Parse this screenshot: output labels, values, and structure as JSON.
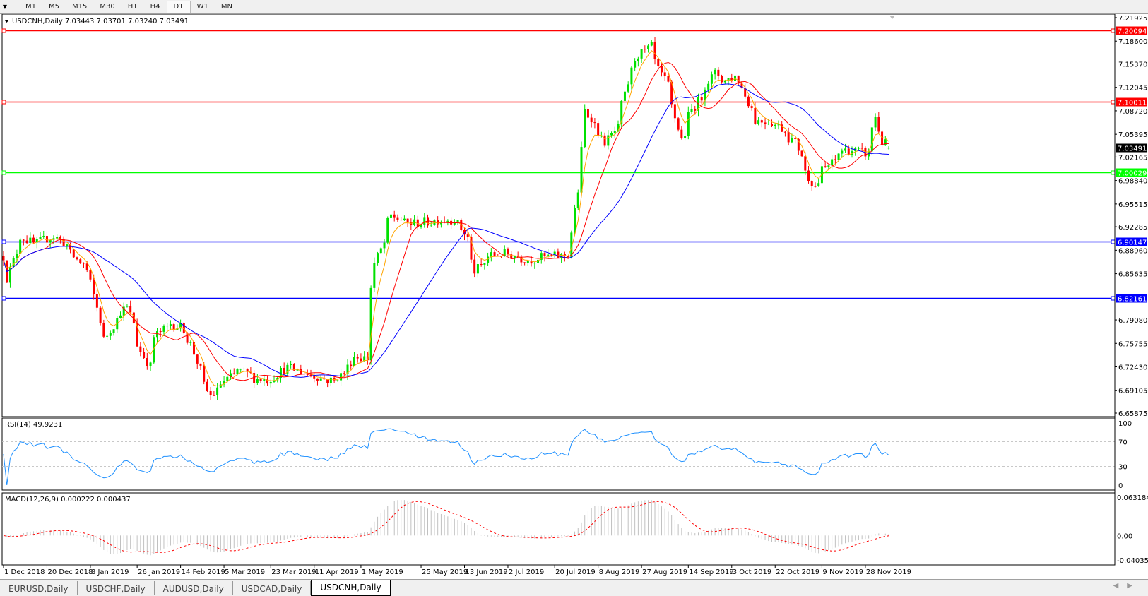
{
  "toolbar": {
    "timeframes": [
      "M1",
      "M5",
      "M15",
      "M30",
      "H1",
      "H4",
      "D1",
      "W1",
      "MN"
    ],
    "active": "D1"
  },
  "tabs": [
    "EURUSD,Daily",
    "USDCHF,Daily",
    "AUDUSD,Daily",
    "USDCAD,Daily",
    "USDCNH,Daily"
  ],
  "active_tab": "USDCNH,Daily",
  "chart_data": {
    "type": "candlestick",
    "header": "USDCNH,Daily  7.03443 7.03701 7.03240 7.03491",
    "last_bar": {
      "open": 7.03443,
      "high": 7.03701,
      "low": 7.0324,
      "close": 7.03491
    },
    "ylim": [
      6.65875,
      7.21925
    ],
    "close_waypoints": [
      [
        "2018-12-01",
        6.943
      ],
      [
        "2018-12-04",
        6.85
      ],
      [
        "2018-12-09",
        6.912
      ],
      [
        "2018-12-15",
        6.896
      ],
      [
        "2018-12-23",
        6.912
      ],
      [
        "2018-12-27",
        6.901
      ],
      [
        "2019-01-02",
        6.876
      ],
      [
        "2019-01-07",
        6.86
      ],
      [
        "2019-01-10",
        6.808
      ],
      [
        "2019-01-13",
        6.756
      ],
      [
        "2019-01-19",
        6.798
      ],
      [
        "2019-01-23",
        6.808
      ],
      [
        "2019-01-29",
        6.746
      ],
      [
        "2019-02-01",
        6.725
      ],
      [
        "2019-02-04",
        6.767
      ],
      [
        "2019-02-10",
        6.787
      ],
      [
        "2019-02-16",
        6.777
      ],
      [
        "2019-02-19",
        6.756
      ],
      [
        "2019-02-22",
        6.72
      ],
      [
        "2019-02-27",
        6.683
      ],
      [
        "2019-03-05",
        6.704
      ],
      [
        "2019-03-11",
        6.72
      ],
      [
        "2019-03-17",
        6.709
      ],
      [
        "2019-03-24",
        6.704
      ],
      [
        "2019-03-30",
        6.725
      ],
      [
        "2019-04-08",
        6.715
      ],
      [
        "2019-04-19",
        6.704
      ],
      [
        "2019-04-24",
        6.715
      ],
      [
        "2019-04-27",
        6.741
      ],
      [
        "2019-05-03",
        6.736
      ],
      [
        "2019-05-07",
        6.871
      ],
      [
        "2019-05-14",
        6.938
      ],
      [
        "2019-05-20",
        6.928
      ],
      [
        "2019-05-27",
        6.928
      ],
      [
        "2019-06-03",
        6.933
      ],
      [
        "2019-06-10",
        6.933
      ],
      [
        "2019-06-15",
        6.901
      ],
      [
        "2019-06-18",
        6.86
      ],
      [
        "2019-06-24",
        6.881
      ],
      [
        "2019-06-30",
        6.886
      ],
      [
        "2019-07-10",
        6.876
      ],
      [
        "2019-07-19",
        6.881
      ],
      [
        "2019-07-24",
        6.881
      ],
      [
        "2019-07-28",
        6.886
      ],
      [
        "2019-07-31",
        6.974
      ],
      [
        "2019-08-02",
        7.088
      ],
      [
        "2019-08-06",
        7.078
      ],
      [
        "2019-08-10",
        7.036
      ],
      [
        "2019-08-13",
        7.047
      ],
      [
        "2019-08-17",
        7.068
      ],
      [
        "2019-08-20",
        7.109
      ],
      [
        "2019-08-23",
        7.161
      ],
      [
        "2019-08-28",
        7.171
      ],
      [
        "2019-08-31",
        7.182
      ],
      [
        "2019-09-03",
        7.145
      ],
      [
        "2019-09-08",
        7.109
      ],
      [
        "2019-09-12",
        7.047
      ],
      [
        "2019-09-17",
        7.088
      ],
      [
        "2019-09-22",
        7.119
      ],
      [
        "2019-09-26",
        7.14
      ],
      [
        "2019-10-01",
        7.13
      ],
      [
        "2019-10-06",
        7.14
      ],
      [
        "2019-10-09",
        7.109
      ],
      [
        "2019-10-13",
        7.073
      ],
      [
        "2019-10-20",
        7.073
      ],
      [
        "2019-10-26",
        7.057
      ],
      [
        "2019-10-30",
        7.042
      ],
      [
        "2019-11-04",
        7.0
      ],
      [
        "2019-11-07",
        6.98
      ],
      [
        "2019-11-10",
        7.0
      ],
      [
        "2019-11-15",
        7.016
      ],
      [
        "2019-11-19",
        7.031
      ],
      [
        "2019-11-24",
        7.031
      ],
      [
        "2019-11-29",
        7.026
      ],
      [
        "2019-12-03",
        7.078
      ],
      [
        "2019-12-05",
        7.042
      ],
      [
        "2019-12-09",
        7.03491
      ]
    ],
    "price_ticks": [
      "7.21925",
      "7.18600",
      "7.15370",
      "7.12045",
      "7.08720",
      "7.05395",
      "7.02165",
      "6.98840",
      "6.95515",
      "6.92285",
      "6.88960",
      "6.85635",
      "6.79080",
      "6.75755",
      "6.72430",
      "6.69105",
      "6.65875"
    ],
    "date_ticks": [
      {
        "label": "1 Dec 2018",
        "date": "2018-12-01"
      },
      {
        "label": "20 Dec 2018",
        "date": "2018-12-20"
      },
      {
        "label": "8 Jan 2019",
        "date": "2019-01-08"
      },
      {
        "label": "26 Jan 2019",
        "date": "2019-01-26"
      },
      {
        "label": "14 Feb 2019",
        "date": "2019-02-14"
      },
      {
        "label": "5 Mar 2019",
        "date": "2019-03-05"
      },
      {
        "label": "23 Mar 2019",
        "date": "2019-03-23"
      },
      {
        "label": "11 Apr 2019",
        "date": "2019-04-11"
      },
      {
        "label": "1 May 2019",
        "date": "2019-05-01"
      },
      {
        "label": "25 May 2019",
        "date": "2019-05-25"
      },
      {
        "label": "13 Jun 2019",
        "date": "2019-06-13"
      },
      {
        "label": "2 Jul 2019",
        "date": "2019-07-02"
      },
      {
        "label": "20 Jul 2019",
        "date": "2019-07-20"
      },
      {
        "label": "8 Aug 2019",
        "date": "2019-08-08"
      },
      {
        "label": "27 Aug 2019",
        "date": "2019-08-27"
      },
      {
        "label": "14 Sep 2019",
        "date": "2019-09-14"
      },
      {
        "label": "3 Oct 2019",
        "date": "2019-10-03"
      },
      {
        "label": "22 Oct 2019",
        "date": "2019-10-22"
      },
      {
        "label": "9 Nov 2019",
        "date": "2019-11-09"
      },
      {
        "label": "28 Nov 2019",
        "date": "2019-11-28"
      }
    ],
    "hlines": [
      {
        "price": 7.20094,
        "label": "7.20094",
        "color": "#ff0000"
      },
      {
        "price": 7.10011,
        "label": "7.10011",
        "color": "#ff0000"
      },
      {
        "price": 7.00029,
        "label": "7.00029",
        "color": "#00ff00"
      },
      {
        "price": 6.90147,
        "label": "6.90147",
        "color": "#0000ff"
      },
      {
        "price": 6.82161,
        "label": "6.82161",
        "color": "#0000ff"
      }
    ],
    "bid": {
      "price": 7.03491,
      "label": "7.03491"
    },
    "colors": {
      "bull": "#00e000",
      "bear": "#ff0000",
      "ma_fast": "#ffa500",
      "ma_mid": "#ff0000",
      "ma_slow": "#0000ff",
      "rsi": "#1e90ff",
      "macd_hist": "#c0c0c0",
      "macd_signal": "#ff0000"
    },
    "rsi": {
      "label": "RSI(14) 49.9231",
      "period": 14,
      "levels": [
        70,
        30
      ],
      "ticks": [
        "100",
        "70",
        "30",
        "0"
      ]
    },
    "macd": {
      "label": "MACD(12,26,9) 0.000222 0.000437",
      "fast": 12,
      "slow": 26,
      "signal": 9,
      "ylim": [
        -0.040355,
        0.063184
      ],
      "ticks": [
        "0.063184",
        "0.00",
        "-0.040355"
      ]
    }
  }
}
